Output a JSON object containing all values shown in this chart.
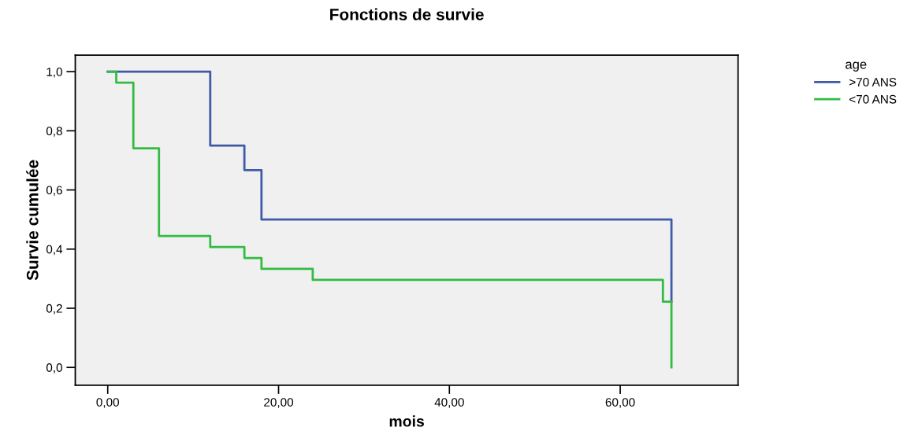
{
  "chart_data": {
    "type": "step",
    "title": "Fonctions de survie",
    "xlabel": "mois",
    "ylabel": "Survie cumulée",
    "legend_title": "age",
    "legend": "top right",
    "series": [
      {
        "name": ">70 ANS",
        "color": "#3f5ba8",
        "x": [
          0,
          12,
          16,
          18,
          66
        ],
        "values": [
          1.0,
          0.75,
          0.667,
          0.5,
          0.222
        ]
      },
      {
        "name": "<70 ANS",
        "color": "#33bb44",
        "x": [
          0,
          1,
          3,
          6,
          12,
          16,
          18,
          24,
          65,
          66
        ],
        "values": [
          1.0,
          0.963,
          0.741,
          0.444,
          0.407,
          0.37,
          0.333,
          0.296,
          0.222,
          0.0
        ]
      }
    ],
    "xlim": [
      -3.8,
      73.8
    ],
    "ylim": [
      -0.06,
      1.056
    ],
    "xticks": [
      {
        "value": 0,
        "label": "0,00"
      },
      {
        "value": 20,
        "label": "20,00"
      },
      {
        "value": 40,
        "label": "40,00"
      },
      {
        "value": 60,
        "label": "60,00"
      }
    ],
    "yticks": [
      {
        "value": 0,
        "label": "0,0"
      },
      {
        "value": 0.2,
        "label": "0,2"
      },
      {
        "value": 0.4,
        "label": "0,4"
      },
      {
        "value": 0.6,
        "label": "0,6"
      },
      {
        "value": 0.8,
        "label": "0,8"
      },
      {
        "value": 1.0,
        "label": "1,0"
      }
    ],
    "grid": false
  }
}
